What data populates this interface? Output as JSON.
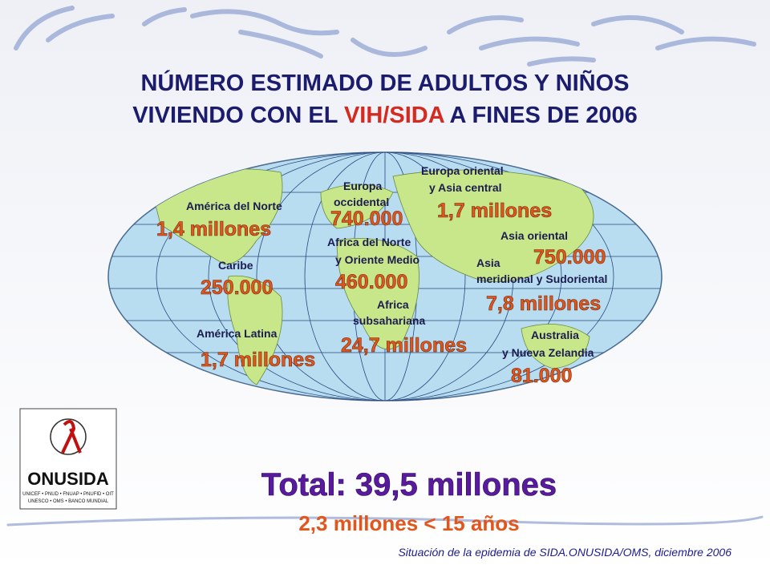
{
  "title": {
    "line1": "NÚMERO ESTIMADO DE ADULTOS Y NIÑOS",
    "line2_before": "VIVIENDO CON EL ",
    "line2_highlight": "VIH/SIDA",
    "line2_after": " A FINES DE 2006"
  },
  "regions": [
    {
      "name": [
        "América del Norte"
      ],
      "value": "1,4 millones"
    },
    {
      "name": [
        "Caribe"
      ],
      "value": "250.000"
    },
    {
      "name": [
        "América Latina"
      ],
      "value": "1,7 millones"
    },
    {
      "name": [
        "Europa",
        "occidental"
      ],
      "value": "740.000"
    },
    {
      "name": [
        "Africa del Norte",
        "y Oriente Medio"
      ],
      "value": "460.000"
    },
    {
      "name": [
        "Africa",
        "subsahariana"
      ],
      "value": "24,7 millones"
    },
    {
      "name": [
        "Europa oriental",
        "y Asia central"
      ],
      "value": "1,7 millones"
    },
    {
      "name": [
        "Asia oriental"
      ],
      "value": "750.000"
    },
    {
      "name": [
        "Asia",
        "meridional y Sudoriental"
      ],
      "value": "7,8 millones"
    },
    {
      "name": [
        "Australia",
        "y Nueva Zelandia"
      ],
      "value": "81.000"
    }
  ],
  "total": "Total: 39,5 millones",
  "children": "2,3 millones < 15 años",
  "logo": {
    "name": "ONUSIDA",
    "line1": "UNICEF • PNUD • FNUAP • PNUFID • OIT",
    "line2": "UNESCO • OMS • BANCO MUNDIAL"
  },
  "source": "Situación de la epidemia de SIDA.ONUSIDA/OMS, diciembre 2006"
}
